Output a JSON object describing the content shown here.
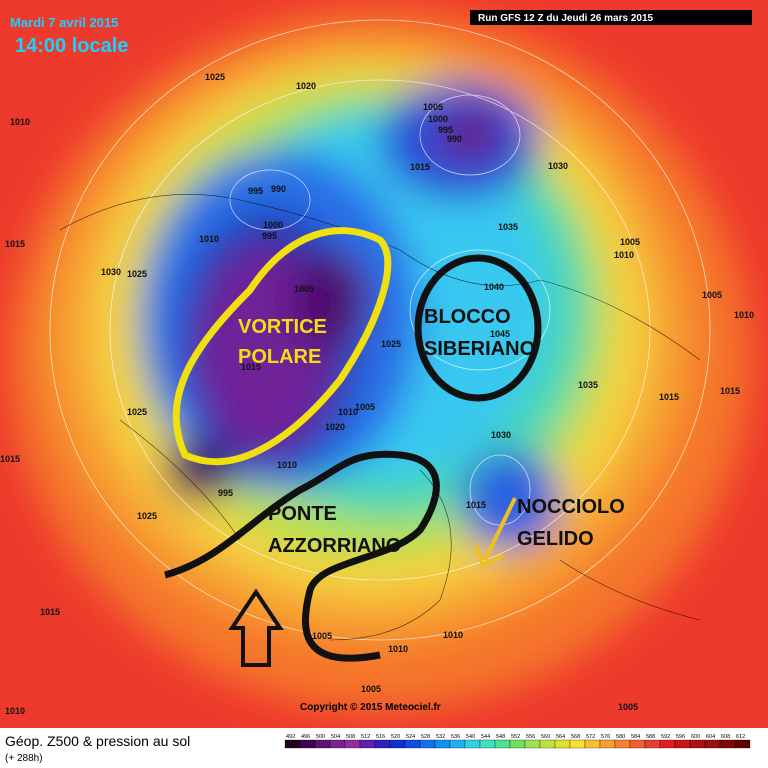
{
  "header": {
    "date": "Mardi 7 avril 2015",
    "time": "14:00 locale",
    "run": "Run GFS 12 Z du Jeudi 26 mars 2015"
  },
  "annotations": {
    "vortex": [
      "VORTICE",
      "POLARE"
    ],
    "block": [
      "BLOCCO",
      "SIBERIANO"
    ],
    "bridge": [
      "PONTE",
      "AZZORRIANO"
    ],
    "core": [
      "NOCCIOLO",
      "GELIDO"
    ]
  },
  "isobar_labels": [
    1025,
    1020,
    1010,
    1005,
    1000,
    995,
    990,
    1015,
    995,
    990,
    1030,
    1000,
    995,
    1010,
    1015,
    1030,
    1025,
    1005,
    1040,
    1035,
    1005,
    1010,
    1005,
    1010,
    1045,
    1025,
    1015,
    1035,
    1015,
    1015,
    1025,
    1005,
    1010,
    1020,
    1030,
    1015,
    1010,
    995,
    1025,
    1015,
    1015,
    1005,
    1010,
    1010,
    1005,
    1005,
    1010
  ],
  "footer": {
    "title": "Géop. Z500 & pression au sol",
    "lead": "(+ 288h)",
    "copyright": "Copyright © 2015 Meteociel.fr"
  },
  "legend": {
    "ticks": [
      492,
      496,
      500,
      504,
      508,
      512,
      516,
      520,
      524,
      528,
      532,
      536,
      540,
      544,
      548,
      552,
      556,
      560,
      564,
      568,
      572,
      576,
      580,
      584,
      588,
      592,
      596,
      600,
      604,
      608,
      612
    ]
  }
}
